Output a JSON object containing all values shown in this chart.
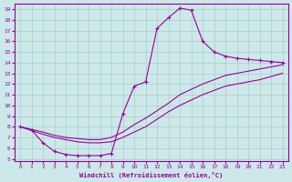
{
  "xlabel": "Windchill (Refroidissement éolien,°C)",
  "bg_color": "#cce8e8",
  "line_color": "#990099",
  "grid_color": "#aacccc",
  "xlim": [
    -0.5,
    23.5
  ],
  "ylim": [
    4.8,
    19.5
  ],
  "xticks": [
    0,
    1,
    2,
    3,
    4,
    5,
    6,
    7,
    8,
    9,
    10,
    11,
    12,
    13,
    14,
    15,
    16,
    17,
    18,
    19,
    20,
    21,
    22,
    23
  ],
  "yticks": [
    5,
    6,
    7,
    8,
    9,
    10,
    11,
    12,
    13,
    14,
    15,
    16,
    17,
    18,
    19
  ],
  "curve1_x": [
    0,
    1,
    2,
    3,
    4,
    5,
    6,
    7,
    8,
    9,
    10,
    11,
    12,
    13,
    14,
    15,
    16,
    17,
    18,
    19,
    20,
    21,
    22,
    23
  ],
  "curve1_y": [
    8.0,
    7.7,
    6.5,
    5.7,
    5.4,
    5.3,
    5.3,
    5.3,
    5.5,
    9.2,
    11.8,
    12.2,
    17.2,
    18.2,
    19.1,
    18.9,
    16.0,
    15.0,
    14.6,
    14.4,
    14.3,
    14.2,
    14.1,
    14.0
  ],
  "curve2_x": [
    0,
    2,
    3,
    4,
    5,
    6,
    7,
    8,
    9,
    10,
    11,
    12,
    13,
    14,
    15,
    16,
    17,
    18,
    19,
    20,
    21,
    22,
    23
  ],
  "curve2_y": [
    8.0,
    7.5,
    7.2,
    7.0,
    6.9,
    6.8,
    6.8,
    7.0,
    7.5,
    8.2,
    8.8,
    9.5,
    10.2,
    11.0,
    11.5,
    12.0,
    12.4,
    12.8,
    13.0,
    13.2,
    13.4,
    13.6,
    13.8
  ],
  "curve3_x": [
    0,
    2,
    3,
    4,
    5,
    6,
    7,
    8,
    9,
    10,
    11,
    12,
    13,
    14,
    15,
    16,
    17,
    18,
    19,
    20,
    21,
    22,
    23
  ],
  "curve3_y": [
    8.0,
    7.3,
    7.0,
    6.8,
    6.6,
    6.5,
    6.5,
    6.6,
    7.0,
    7.5,
    8.0,
    8.7,
    9.4,
    10.0,
    10.5,
    11.0,
    11.4,
    11.8,
    12.0,
    12.2,
    12.4,
    12.7,
    13.0
  ]
}
